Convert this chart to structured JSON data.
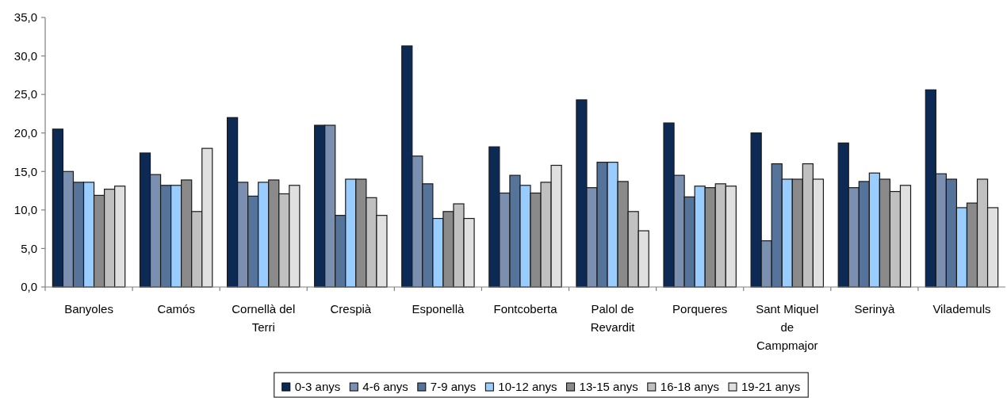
{
  "chart_data": {
    "type": "bar",
    "categories": [
      "Banyoles",
      "Camós",
      "Cornellà del Terri",
      "Crespià",
      "Esponellà",
      "Fontcoberta",
      "Palol de Revardit",
      "Porqueres",
      "Sant Miquel de Campmajor",
      "Serinyà",
      "Vilademuls"
    ],
    "series": [
      {
        "name": "0-3 anys",
        "color": "#0d2a55",
        "values": [
          20.5,
          17.4,
          22.0,
          21.0,
          31.3,
          18.2,
          24.3,
          21.3,
          20.0,
          18.7,
          25.6
        ]
      },
      {
        "name": "4-6 anys",
        "color": "#7b8fb0",
        "values": [
          15.0,
          14.6,
          13.6,
          21.0,
          17.0,
          12.2,
          12.9,
          14.5,
          6.0,
          12.9,
          14.7
        ]
      },
      {
        "name": "7-9 anys",
        "color": "#56739a",
        "values": [
          13.6,
          13.2,
          11.8,
          9.3,
          13.4,
          14.5,
          16.2,
          11.7,
          16.0,
          13.7,
          14.0
        ]
      },
      {
        "name": "10-12 anys",
        "color": "#99ccff",
        "values": [
          13.6,
          13.2,
          13.6,
          14.0,
          8.9,
          13.2,
          16.2,
          13.1,
          14.0,
          14.8,
          10.3
        ]
      },
      {
        "name": "13-15 anys",
        "color": "#8a8a8a",
        "values": [
          11.9,
          13.9,
          13.9,
          14.0,
          9.8,
          12.2,
          13.7,
          12.9,
          14.0,
          14.0,
          10.9
        ]
      },
      {
        "name": "16-18 anys",
        "color": "#c0c0c0",
        "values": [
          12.7,
          9.8,
          12.1,
          11.6,
          10.8,
          13.6,
          9.8,
          13.4,
          16.0,
          12.4,
          14.0
        ]
      },
      {
        "name": "19-21 anys",
        "color": "#e0e0e0",
        "values": [
          13.1,
          18.0,
          13.2,
          9.3,
          8.9,
          15.8,
          7.3,
          13.1,
          14.0,
          13.2,
          10.3
        ]
      }
    ],
    "ylim": [
      0,
      35
    ],
    "yticks": [
      {
        "value": 0,
        "label": "0,0"
      },
      {
        "value": 5,
        "label": "5,0"
      },
      {
        "value": 10,
        "label": "10,0"
      },
      {
        "value": 15,
        "label": "15,0"
      },
      {
        "value": 20,
        "label": "20,0"
      },
      {
        "value": 25,
        "label": "25,0"
      },
      {
        "value": 30,
        "label": "30,0"
      },
      {
        "value": 35,
        "label": "35,0"
      }
    ],
    "legend": "bottom"
  }
}
